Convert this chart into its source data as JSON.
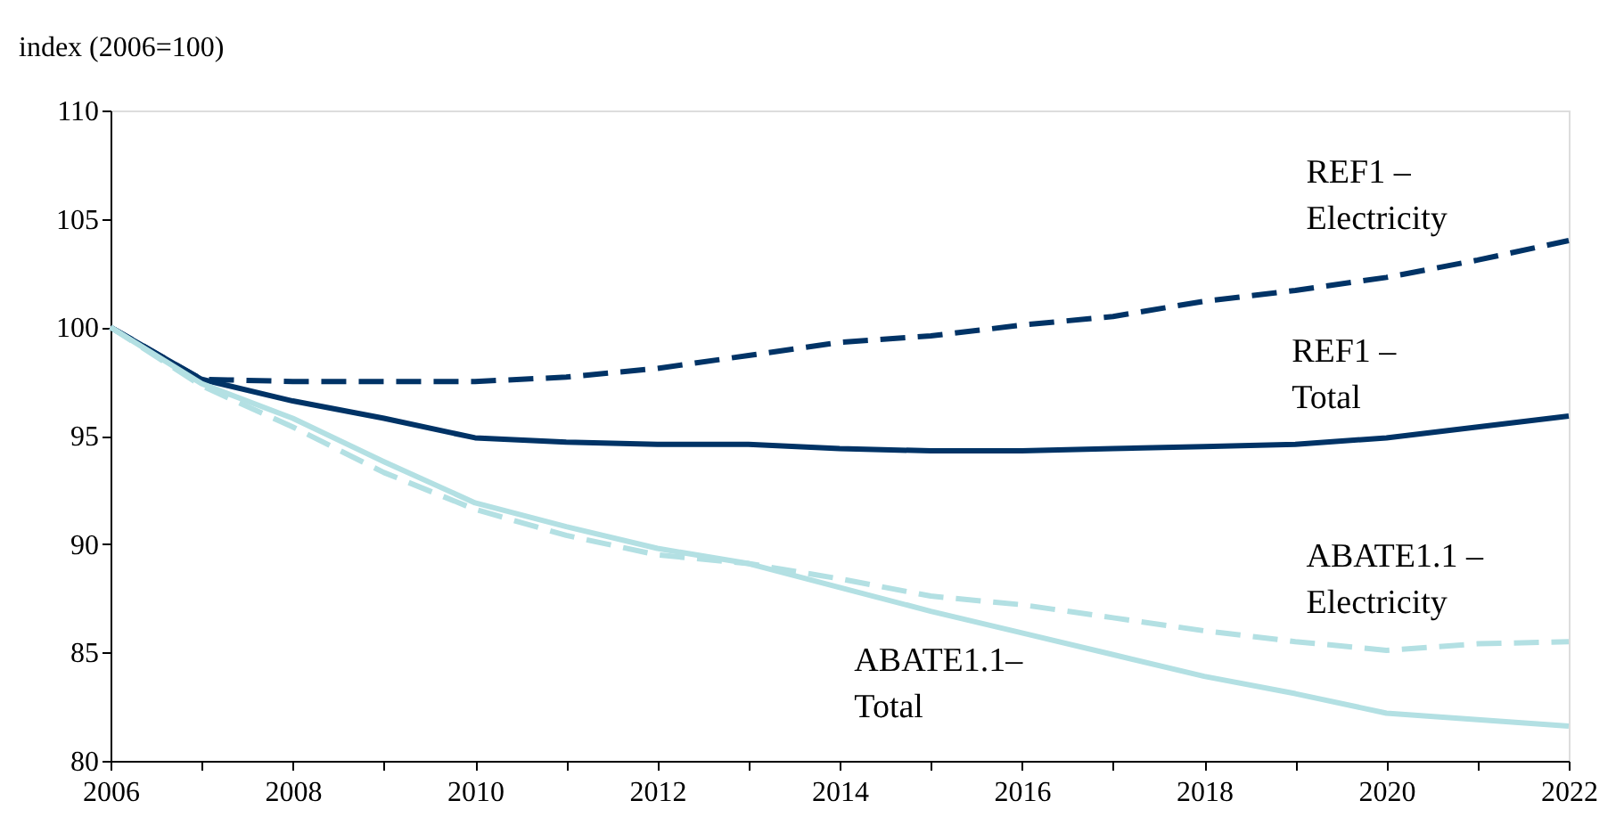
{
  "chart_data": {
    "type": "line",
    "ylabel": "index (2006=100)",
    "x": [
      2006,
      2007,
      2008,
      2009,
      2010,
      2011,
      2012,
      2013,
      2014,
      2015,
      2016,
      2017,
      2018,
      2019,
      2020,
      2021,
      2022
    ],
    "xlim": [
      2006,
      2022
    ],
    "xticks": [
      2006,
      {
        "value": 2007,
        "label": null
      },
      2008,
      {
        "value": 2009,
        "label": null
      },
      2010,
      {
        "value": 2011,
        "label": null
      },
      2012,
      {
        "value": 2013,
        "label": null
      },
      2014,
      {
        "value": 2015,
        "label": null
      },
      2016,
      {
        "value": 2017,
        "label": null
      },
      2018,
      {
        "value": 2019,
        "label": null
      },
      2020,
      {
        "value": 2021,
        "label": null
      },
      2022
    ],
    "ylim": [
      80,
      110
    ],
    "yticks": [
      80,
      85,
      90,
      95,
      100,
      105,
      110
    ],
    "grid": false,
    "legend": false,
    "series": [
      {
        "name": "REF1 –\nElectricity",
        "color": "#003366",
        "line_style": "dashed",
        "values": [
          100,
          97.6,
          97.5,
          97.5,
          97.5,
          97.7,
          98.1,
          98.7,
          99.3,
          99.6,
          100.1,
          100.5,
          101.2,
          101.7,
          102.3,
          103.1,
          104.0
        ]
      },
      {
        "name": "REF1 –\nTotal",
        "color": "#003366",
        "line_style": "solid",
        "values": [
          100,
          97.6,
          96.6,
          95.8,
          94.9,
          94.7,
          94.6,
          94.6,
          94.4,
          94.3,
          94.3,
          94.4,
          94.5,
          94.6,
          94.9,
          95.4,
          95.9
        ]
      },
      {
        "name": "ABATE1.1 –\nElectricity",
        "color": "#b3e0e3",
        "line_style": "dashed",
        "values": [
          100,
          97.3,
          95.4,
          93.3,
          91.6,
          90.4,
          89.5,
          89.1,
          88.4,
          87.6,
          87.2,
          86.6,
          86.0,
          85.5,
          85.1,
          85.4,
          85.5
        ]
      },
      {
        "name": "ABATE1.1–\nTotal",
        "color": "#b3e0e3",
        "line_style": "solid",
        "values": [
          100,
          97.4,
          95.8,
          93.8,
          91.9,
          90.8,
          89.8,
          89.1,
          88.0,
          86.9,
          85.9,
          84.9,
          83.9,
          83.1,
          82.2,
          81.9,
          81.6
        ]
      }
    ]
  }
}
